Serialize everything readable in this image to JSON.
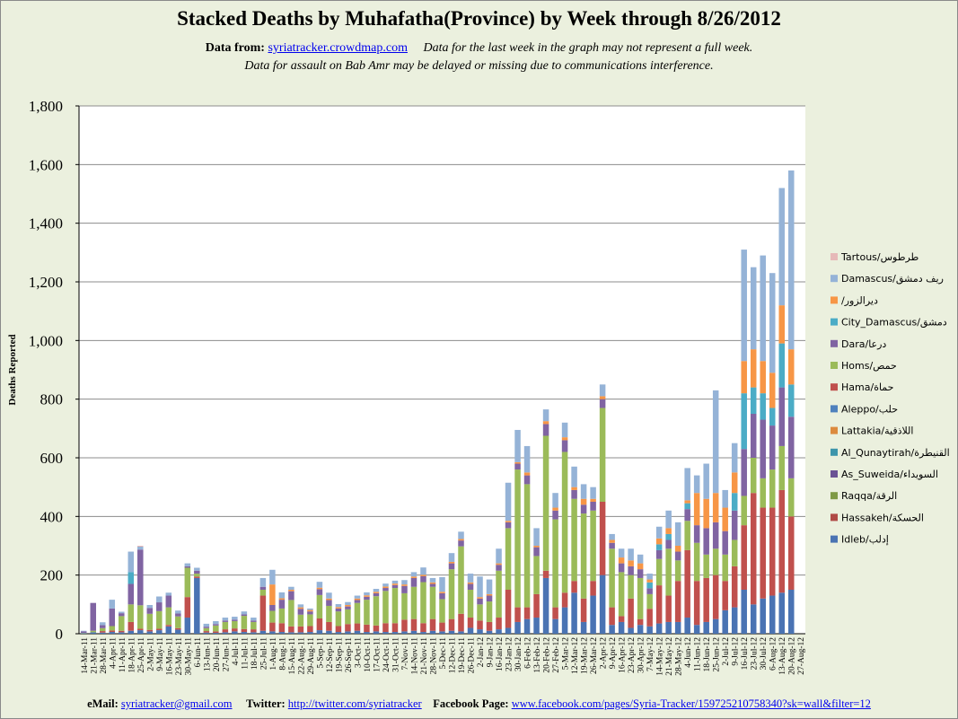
{
  "header": {
    "title": "Stacked Deaths by Muhafatha(Province) by Week through 8/26/2012",
    "data_from_label": "Data from:",
    "data_from_link": "syriatracker.crowdmap.com",
    "note1": "Data for the last week in the graph may not represent a full week.",
    "note2": "Data for assault on Bab Amr may be delayed or missing due to communications interference."
  },
  "footer": {
    "email_label": "eMail:",
    "email": "syriatracker@gmail.com",
    "twitter_label": "Twitter:",
    "twitter": "http://twitter.com/syriatracker",
    "facebook_label": "Facebook  Page:",
    "facebook": "www.facebook.com/pages/Syria-Tracker/159725210758340?sk=wall&filter=12"
  },
  "chart_data": {
    "type": "bar",
    "stacked": true,
    "title": "Stacked Deaths by Muhafatha(Province) by Week through 8/26/2012",
    "xlabel": "",
    "ylabel": "Deaths Reported",
    "ylim": [
      0,
      1800
    ],
    "yticks": [
      "0",
      "200",
      "400",
      "600",
      "800",
      "1,000",
      "1,200",
      "1,400",
      "1,600",
      "1,800"
    ],
    "grid": true,
    "legend_position": "right",
    "categories": [
      "14-Mar-11",
      "21-Mar-11",
      "28-Mar-11",
      "4-Apr-11",
      "11-Apr-11",
      "18-Apr-11",
      "25-Apr-11",
      "2-May-11",
      "9-May-11",
      "16-May-11",
      "23-May-11",
      "30-May-11",
      "6-Jun-11",
      "13-Jun-11",
      "20-Jun-11",
      "27-Jun-11",
      "4-Jul-11",
      "11-Jul-11",
      "18-Jul-11",
      "25-Jul-11",
      "1-Aug-11",
      "8-Aug-11",
      "15-Aug-11",
      "22-Aug-11",
      "29-Aug-11",
      "5-Sep-11",
      "12-Sep-11",
      "19-Sep-11",
      "26-Sep-11",
      "3-Oct-11",
      "10-Oct-11",
      "17-Oct-11",
      "24-Oct-11",
      "31-Oct-11",
      "7-Nov-11",
      "14-Nov-11",
      "21-Nov-11",
      "28-Nov-11",
      "5-Dec-11",
      "12-Dec-11",
      "19-Dec-11",
      "26-Dec-11",
      "2-Jan-12",
      "9-Jan-12",
      "16-Jan-12",
      "23-Jan-12",
      "30-Jan-12",
      "6-Feb-12",
      "13-Feb-12",
      "20-Feb-12",
      "27-Feb-12",
      "5-Mar-12",
      "12-Mar-12",
      "19-Mar-12",
      "26-Mar-12",
      "2-Apr-12",
      "9-Apr-12",
      "16-Apr-12",
      "23-Apr-12",
      "30-Apr-12",
      "7-May-12",
      "14-May-12",
      "21-May-12",
      "28-May-12",
      "4-Jun-12",
      "11-Jun-12",
      "18-Jun-12",
      "25-Jun-12",
      "2-Jul-12",
      "9-Jul-12",
      "16-Jul-12",
      "23-Jul-12",
      "30-Jul-12",
      "6-Aug-12",
      "13-Aug-12",
      "20-Aug-12",
      "27-Aug-12"
    ],
    "series": [
      {
        "name": "Idleb/إدلب",
        "color": "#4a73b3",
        "values": [
          2,
          5,
          4,
          6,
          5,
          10,
          12,
          8,
          12,
          25,
          14,
          55,
          190,
          4,
          3,
          5,
          8,
          6,
          5,
          10,
          8,
          6,
          5,
          5,
          6,
          12,
          10,
          6,
          8,
          10,
          6,
          8,
          6,
          6,
          8,
          10,
          6,
          10,
          8,
          10,
          8,
          20,
          15,
          10,
          15,
          20,
          40,
          50,
          55,
          190,
          50,
          90,
          140,
          40,
          130,
          200,
          30,
          40,
          20,
          30,
          25,
          35,
          40,
          40,
          55,
          30,
          40,
          50,
          80,
          90,
          150,
          100,
          120,
          130,
          140,
          150,
          0
        ]
      },
      {
        "name": "Hassakeh/الحسكة",
        "color": "#b04a46",
        "values": [
          0,
          0,
          0,
          0,
          0,
          0,
          0,
          0,
          0,
          0,
          0,
          0,
          0,
          0,
          0,
          0,
          0,
          0,
          0,
          0,
          0,
          0,
          0,
          0,
          0,
          0,
          0,
          0,
          0,
          0,
          0,
          0,
          0,
          0,
          0,
          0,
          0,
          0,
          0,
          0,
          0,
          0,
          0,
          0,
          0,
          0,
          0,
          0,
          0,
          0,
          0,
          0,
          0,
          0,
          0,
          0,
          0,
          0,
          0,
          0,
          0,
          0,
          0,
          0,
          0,
          0,
          0,
          0,
          0,
          0,
          0,
          0,
          0,
          0,
          0,
          0,
          0
        ]
      },
      {
        "name": "Raqqa/الرقة",
        "color": "#7f9a45",
        "values": [
          0,
          0,
          0,
          0,
          0,
          0,
          0,
          0,
          0,
          0,
          0,
          0,
          0,
          0,
          0,
          0,
          0,
          0,
          0,
          0,
          0,
          0,
          0,
          0,
          0,
          0,
          0,
          0,
          0,
          0,
          0,
          0,
          0,
          0,
          0,
          0,
          0,
          0,
          0,
          0,
          0,
          0,
          0,
          0,
          0,
          0,
          0,
          0,
          0,
          0,
          0,
          0,
          0,
          0,
          0,
          0,
          0,
          0,
          0,
          0,
          0,
          0,
          0,
          0,
          0,
          0,
          0,
          0,
          0,
          0,
          0,
          0,
          0,
          0,
          0,
          0,
          0
        ]
      },
      {
        "name": "As_Suweida/السويداء",
        "color": "#6a5294",
        "values": [
          0,
          0,
          0,
          0,
          0,
          0,
          0,
          0,
          0,
          0,
          0,
          0,
          0,
          0,
          0,
          0,
          0,
          0,
          0,
          0,
          0,
          0,
          0,
          0,
          0,
          0,
          0,
          0,
          0,
          0,
          0,
          0,
          0,
          0,
          0,
          0,
          0,
          0,
          0,
          0,
          0,
          0,
          0,
          0,
          0,
          0,
          0,
          0,
          0,
          0,
          0,
          0,
          0,
          0,
          0,
          0,
          0,
          0,
          0,
          0,
          0,
          0,
          0,
          0,
          0,
          0,
          0,
          0,
          0,
          0,
          0,
          0,
          0,
          0,
          0,
          0,
          0
        ]
      },
      {
        "name": "Al_Qunaytirah/القنيطرة",
        "color": "#3d95ab",
        "values": [
          0,
          0,
          0,
          0,
          0,
          0,
          0,
          0,
          0,
          0,
          0,
          0,
          0,
          0,
          0,
          0,
          0,
          0,
          0,
          0,
          0,
          0,
          0,
          0,
          0,
          0,
          0,
          0,
          0,
          0,
          0,
          0,
          0,
          0,
          0,
          0,
          0,
          0,
          0,
          0,
          0,
          0,
          0,
          0,
          0,
          0,
          0,
          0,
          0,
          0,
          0,
          0,
          0,
          0,
          0,
          0,
          0,
          0,
          0,
          0,
          0,
          0,
          0,
          0,
          0,
          0,
          0,
          0,
          0,
          0,
          0,
          0,
          0,
          0,
          0,
          0,
          0
        ]
      },
      {
        "name": "Lattakia/اللاذقية",
        "color": "#dc8a3e",
        "values": [
          0,
          0,
          0,
          0,
          0,
          0,
          0,
          0,
          0,
          0,
          0,
          0,
          0,
          0,
          0,
          0,
          0,
          0,
          0,
          0,
          0,
          0,
          0,
          0,
          0,
          0,
          0,
          0,
          0,
          0,
          0,
          0,
          0,
          0,
          0,
          0,
          0,
          0,
          0,
          0,
          0,
          0,
          0,
          0,
          0,
          0,
          0,
          0,
          0,
          0,
          0,
          0,
          0,
          0,
          0,
          0,
          0,
          0,
          0,
          0,
          0,
          0,
          0,
          0,
          0,
          0,
          0,
          0,
          0,
          0,
          0,
          0,
          0,
          0,
          0,
          0,
          0
        ]
      },
      {
        "name": "Aleppo/حلب",
        "color": "#4f81bd",
        "values": [
          0,
          0,
          0,
          0,
          0,
          0,
          0,
          0,
          0,
          0,
          0,
          0,
          0,
          0,
          0,
          0,
          0,
          0,
          0,
          0,
          0,
          0,
          0,
          0,
          0,
          0,
          0,
          0,
          0,
          0,
          0,
          0,
          0,
          0,
          0,
          0,
          0,
          0,
          0,
          0,
          0,
          0,
          0,
          0,
          0,
          0,
          0,
          0,
          0,
          0,
          0,
          0,
          0,
          0,
          0,
          0,
          0,
          0,
          0,
          0,
          0,
          0,
          0,
          0,
          0,
          0,
          0,
          0,
          0,
          0,
          0,
          0,
          0,
          0,
          0,
          0,
          0
        ]
      },
      {
        "name": "Hama/حماة",
        "color": "#c0504d",
        "values": [
          0,
          0,
          5,
          5,
          5,
          30,
          5,
          5,
          5,
          5,
          5,
          70,
          5,
          5,
          5,
          10,
          10,
          10,
          10,
          120,
          30,
          30,
          20,
          20,
          20,
          40,
          30,
          20,
          25,
          25,
          25,
          20,
          30,
          30,
          40,
          40,
          30,
          40,
          30,
          40,
          60,
          35,
          30,
          30,
          40,
          130,
          50,
          40,
          80,
          25,
          40,
          50,
          40,
          80,
          50,
          250,
          60,
          20,
          100,
          20,
          60,
          130,
          90,
          140,
          230,
          150,
          150,
          150,
          100,
          140,
          220,
          380,
          310,
          300,
          350,
          250,
          0
        ]
      },
      {
        "name": "Homs/حمص",
        "color": "#9bbb59",
        "values": [
          1,
          5,
          10,
          15,
          50,
          60,
          80,
          55,
          60,
          60,
          40,
          100,
          10,
          10,
          20,
          25,
          25,
          45,
          25,
          20,
          40,
          50,
          90,
          40,
          40,
          80,
          55,
          50,
          50,
          70,
          85,
          100,
          110,
          120,
          90,
          110,
          140,
          110,
          80,
          170,
          230,
          95,
          55,
          70,
          160,
          210,
          470,
          420,
          130,
          460,
          300,
          480,
          280,
          290,
          240,
          320,
          200,
          150,
          80,
          140,
          50,
          90,
          160,
          70,
          100,
          130,
          80,
          90,
          90,
          90,
          100,
          120,
          100,
          130,
          150,
          130,
          0
        ]
      },
      {
        "name": "Dara/درعا",
        "color": "#8064a2",
        "values": [
          5,
          95,
          10,
          60,
          10,
          70,
          190,
          20,
          30,
          40,
          10,
          5,
          10,
          5,
          5,
          5,
          5,
          5,
          5,
          10,
          20,
          30,
          30,
          20,
          10,
          20,
          20,
          10,
          10,
          10,
          10,
          10,
          10,
          10,
          25,
          30,
          20,
          10,
          20,
          20,
          20,
          20,
          20,
          20,
          20,
          20,
          20,
          30,
          30,
          40,
          30,
          40,
          30,
          30,
          30,
          30,
          20,
          30,
          30,
          30,
          20,
          30,
          30,
          30,
          40,
          60,
          90,
          90,
          80,
          100,
          160,
          150,
          200,
          150,
          200,
          210,
          0
        ]
      },
      {
        "name": "City_Damascus/دمشق",
        "color": "#4bacc6",
        "values": [
          0,
          0,
          0,
          0,
          0,
          40,
          0,
          0,
          0,
          0,
          0,
          0,
          0,
          0,
          0,
          0,
          0,
          0,
          0,
          0,
          0,
          0,
          0,
          0,
          0,
          0,
          0,
          0,
          0,
          0,
          0,
          0,
          0,
          0,
          0,
          0,
          0,
          0,
          0,
          0,
          0,
          0,
          0,
          0,
          0,
          0,
          0,
          0,
          0,
          0,
          0,
          0,
          0,
          0,
          0,
          0,
          0,
          0,
          0,
          0,
          20,
          20,
          20,
          0,
          20,
          0,
          0,
          0,
          0,
          60,
          190,
          90,
          90,
          60,
          150,
          110,
          0
        ]
      },
      {
        "name": "/ديرالزور",
        "color": "#f79646",
        "values": [
          0,
          0,
          0,
          0,
          0,
          0,
          0,
          0,
          0,
          0,
          0,
          0,
          0,
          0,
          0,
          0,
          0,
          0,
          0,
          0,
          70,
          5,
          5,
          5,
          5,
          5,
          5,
          5,
          5,
          5,
          5,
          5,
          5,
          5,
          5,
          5,
          5,
          5,
          5,
          5,
          5,
          5,
          5,
          5,
          5,
          5,
          5,
          10,
          5,
          10,
          10,
          10,
          10,
          20,
          10,
          10,
          10,
          20,
          20,
          20,
          10,
          20,
          20,
          20,
          10,
          110,
          100,
          100,
          80,
          70,
          110,
          130,
          110,
          120,
          130,
          120,
          0
        ]
      },
      {
        "name": "Damascus/ريف دمشق",
        "color": "#95b3d7",
        "values": [
          2,
          0,
          10,
          30,
          5,
          70,
          10,
          10,
          20,
          10,
          10,
          10,
          10,
          10,
          10,
          10,
          10,
          10,
          10,
          30,
          50,
          20,
          10,
          10,
          5,
          20,
          20,
          10,
          10,
          10,
          10,
          10,
          10,
          10,
          15,
          15,
          25,
          15,
          50,
          30,
          25,
          30,
          70,
          50,
          50,
          130,
          110,
          90,
          60,
          40,
          50,
          50,
          70,
          50,
          40,
          40,
          20,
          30,
          40,
          30,
          20,
          40,
          60,
          80,
          110,
          60,
          120,
          350,
          60,
          100,
          380,
          280,
          360,
          340,
          400,
          610,
          0
        ]
      },
      {
        "name": "Tartous/طرطوس",
        "color": "#e6b9b8",
        "values": [
          0,
          0,
          0,
          0,
          0,
          0,
          3,
          0,
          0,
          0,
          0,
          0,
          0,
          0,
          0,
          0,
          0,
          0,
          0,
          0,
          0,
          0,
          0,
          0,
          0,
          0,
          0,
          0,
          0,
          0,
          0,
          0,
          0,
          0,
          0,
          0,
          0,
          0,
          0,
          0,
          0,
          0,
          0,
          0,
          0,
          0,
          0,
          0,
          0,
          0,
          0,
          0,
          0,
          0,
          0,
          0,
          0,
          0,
          0,
          0,
          0,
          0,
          0,
          0,
          0,
          0,
          0,
          0,
          0,
          0,
          0,
          0,
          0,
          0,
          0,
          0,
          0
        ]
      }
    ]
  }
}
